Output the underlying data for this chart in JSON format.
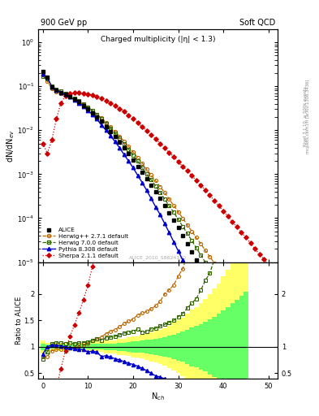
{
  "title_left": "900 GeV pp",
  "title_right": "Soft QCD",
  "main_title": "Charged multiplicity (|η| < 1.3)",
  "ylabel_main": "dN/dN_{ev}",
  "ylabel_ratio": "Ratio to ALICE",
  "xlabel": "N_{ch}",
  "watermark": "ALICE_2010_S8624100",
  "right_label": "Rivet 3.1.10, ≥ 500k events",
  "arxiv_label": "[arXiv:1306.3436]",
  "mcplots_label": "mcplots.cern.ch",
  "ylim_main": [
    1e-05,
    2.0
  ],
  "ylim_ratio": [
    0.4,
    2.6
  ],
  "xlim": [
    -1,
    52
  ],
  "alice_color": "#000000",
  "herwigpp_color": "#bb6600",
  "herwig7_color": "#336600",
  "pythia_color": "#0000cc",
  "sherpa_color": "#cc0000",
  "band_yellow": "#ffff66",
  "band_green": "#66ff66"
}
